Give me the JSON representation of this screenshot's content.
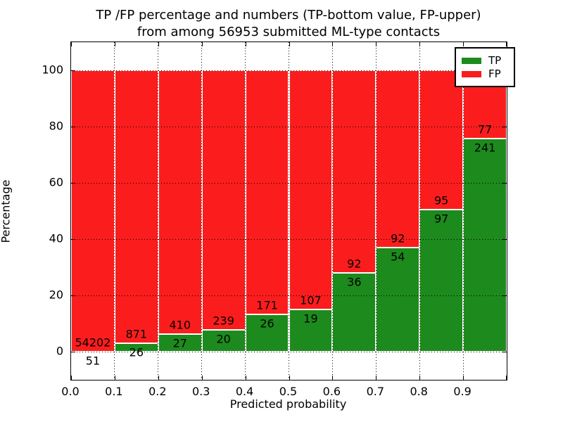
{
  "chart_data": {
    "type": "bar",
    "stacked": true,
    "title_line1": "TP /FP percentage and numbers (TP-bottom value, FP-upper)",
    "title_line2": "from among 56953 submitted ML-type contacts",
    "xlabel": "Predicted probability",
    "ylabel": "Percentage",
    "total_contacts": 56953,
    "bins": [
      "0.0-0.1",
      "0.1-0.2",
      "0.2-0.3",
      "0.3-0.4",
      "0.4-0.5",
      "0.5-0.6",
      "0.6-0.7",
      "0.7-0.8",
      "0.8-0.9",
      "0.9-1.0"
    ],
    "x_tick_labels": [
      "0.0",
      "0.1",
      "0.2",
      "0.3",
      "0.4",
      "0.5",
      "0.6",
      "0.7",
      "0.8",
      "0.9"
    ],
    "y_ticks": [
      0,
      20,
      40,
      60,
      80,
      100
    ],
    "xlim": [
      0.0,
      1.0
    ],
    "ylim": [
      -10,
      110
    ],
    "bin_width": 0.1,
    "grid": "dotted",
    "series": [
      {
        "name": "TP",
        "color": "#1d8a1d",
        "counts": [
          51,
          26,
          27,
          20,
          26,
          19,
          36,
          54,
          97,
          241
        ]
      },
      {
        "name": "FP",
        "color": "#fb1d1d",
        "counts": [
          54202,
          871,
          410,
          239,
          171,
          107,
          92,
          92,
          95,
          77
        ]
      }
    ],
    "tp_percent": [
      0.09,
      2.9,
      6.18,
      7.72,
      13.2,
      15.08,
      28.13,
      36.99,
      50.52,
      75.79
    ],
    "legend": {
      "position": "upper right",
      "entries": [
        {
          "label": "TP",
          "color": "#1d8a1d"
        },
        {
          "label": "FP",
          "color": "#fb1d1d"
        }
      ]
    }
  }
}
